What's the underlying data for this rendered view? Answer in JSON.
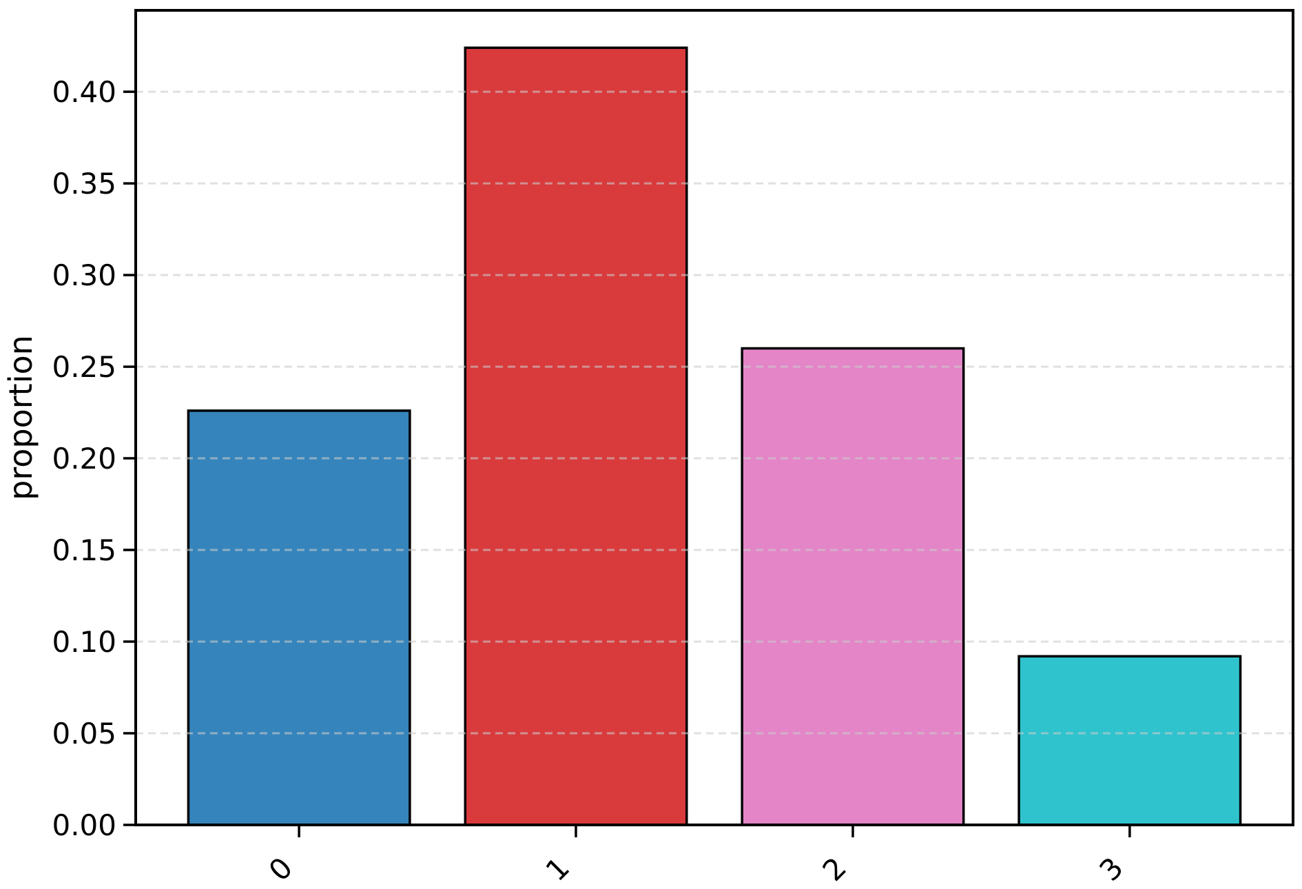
{
  "figure": {
    "background_color": "#ffffff"
  },
  "chart_data": {
    "type": "bar",
    "title": "",
    "xlabel": "",
    "ylabel": "proportion",
    "categories": [
      "0",
      "1",
      "2",
      "3"
    ],
    "values": [
      0.226,
      0.424,
      0.26,
      0.092
    ],
    "ylim": [
      0,
      0.4444
    ],
    "yticks": [
      0.0,
      0.05,
      0.1,
      0.15,
      0.2,
      0.25,
      0.3,
      0.35,
      0.4
    ],
    "ytick_labels": [
      "0.00",
      "0.05",
      "0.10",
      "0.15",
      "0.20",
      "0.25",
      "0.30",
      "0.35",
      "0.40"
    ],
    "xtick_label_rotation_deg": 45,
    "bar_colors": [
      "#3584bc",
      "#d93b3c",
      "#e485c8",
      "#2fc3ce"
    ],
    "bar_edge_color": "#000000",
    "bar_relative_width": 0.8,
    "grid": "horizontal dashed lines drawn above bars",
    "gridline_color": "#cccccc",
    "gridline_alpha": 0.6,
    "axis_color": "#000000",
    "legend": "none"
  }
}
